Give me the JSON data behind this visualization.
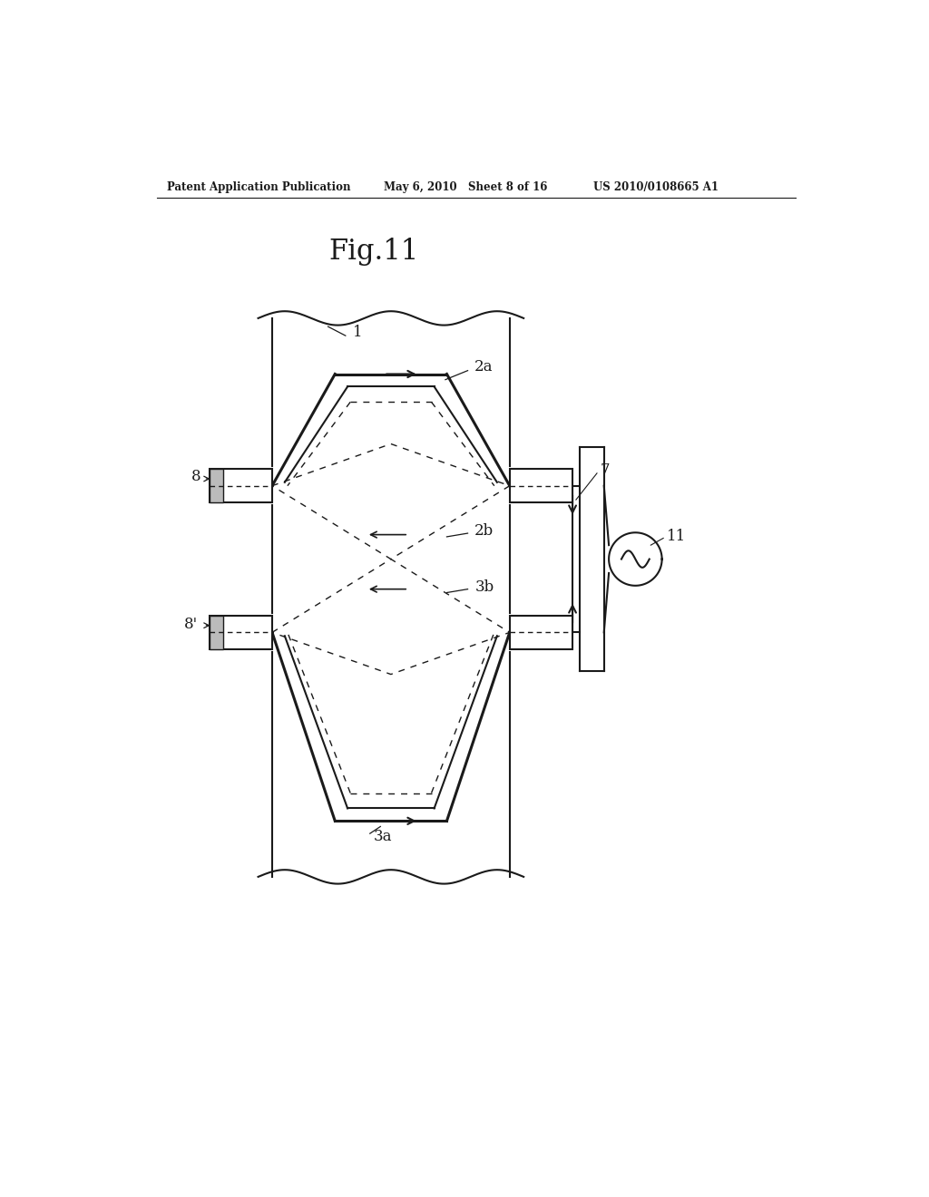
{
  "header_left": "Patent Application Publication",
  "header_mid": "May 6, 2010   Sheet 8 of 16",
  "header_right": "US 2010/0108665 A1",
  "fig_title": "Fig.11",
  "bg_color": "#ffffff",
  "line_color": "#1a1a1a"
}
